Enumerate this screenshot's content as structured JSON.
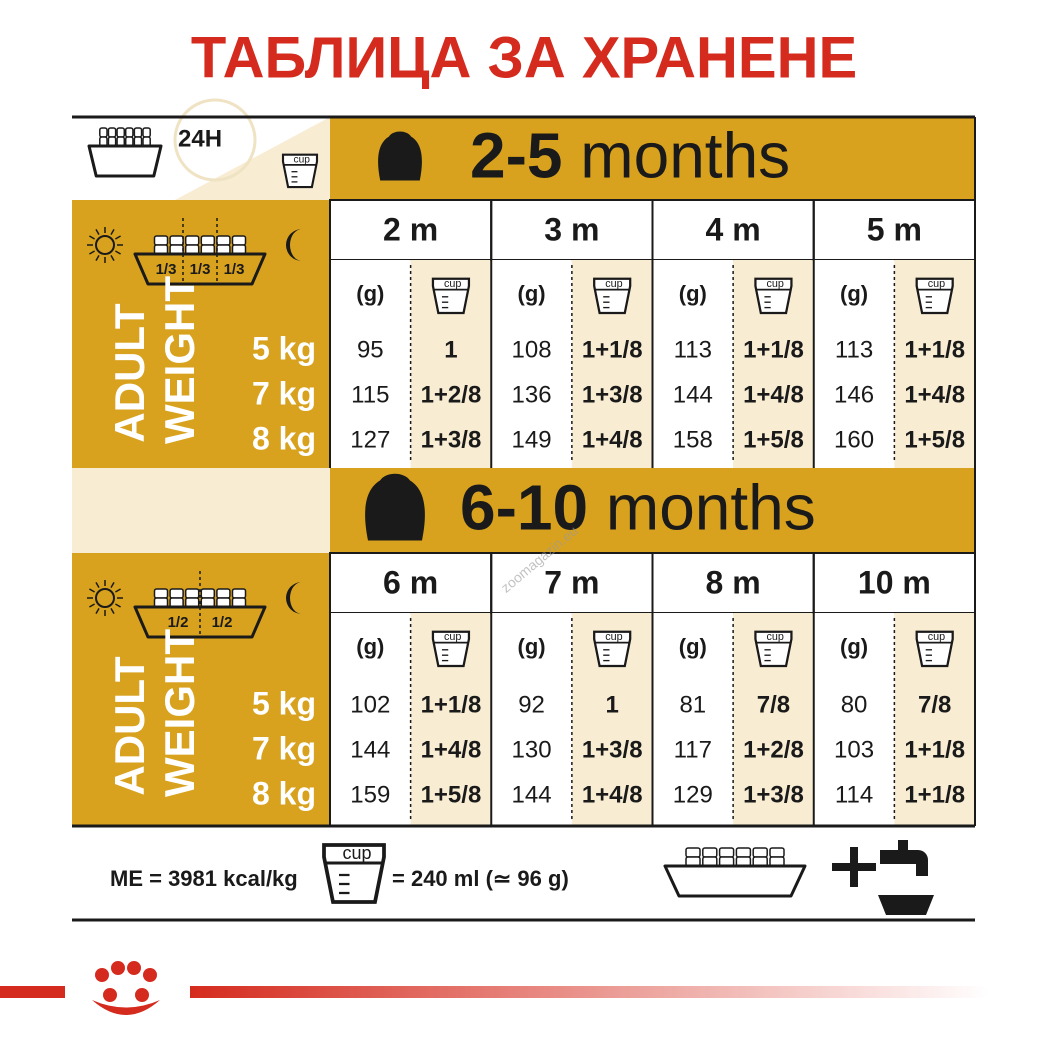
{
  "title": "ТАБЛИЦА ЗА ХРАНЕНЕ",
  "header": {
    "hours": "24H",
    "cup": "cup"
  },
  "sections": [
    {
      "age": "2-5",
      "unit": "months",
      "meals": [
        "1/3",
        "1/3",
        "1/3"
      ],
      "adult": "ADULT",
      "weight": "WEIGHT",
      "weights": [
        "5 kg",
        "7 kg",
        "8 kg"
      ],
      "units": {
        "grams": "(g)",
        "cup": "cup"
      },
      "columns": [
        {
          "month": "2 m",
          "grams": [
            95,
            115,
            127
          ],
          "cups": [
            "1",
            "1+2/8",
            "1+3/8"
          ]
        },
        {
          "month": "3 m",
          "grams": [
            108,
            136,
            149
          ],
          "cups": [
            "1+1/8",
            "1+3/8",
            "1+4/8"
          ]
        },
        {
          "month": "4 m",
          "grams": [
            113,
            144,
            158
          ],
          "cups": [
            "1+1/8",
            "1+4/8",
            "1+5/8"
          ]
        },
        {
          "month": "5 m",
          "grams": [
            113,
            146,
            160
          ],
          "cups": [
            "1+1/8",
            "1+4/8",
            "1+5/8"
          ]
        }
      ]
    },
    {
      "age": "6-10",
      "unit": "months",
      "meals": [
        "1/2",
        "1/2"
      ],
      "adult": "ADULT",
      "weight": "WEIGHT",
      "weights": [
        "5 kg",
        "7 kg",
        "8 kg"
      ],
      "units": {
        "grams": "(g)",
        "cup": "cup"
      },
      "columns": [
        {
          "month": "6 m",
          "grams": [
            102,
            144,
            159
          ],
          "cups": [
            "1+1/8",
            "1+4/8",
            "1+5/8"
          ]
        },
        {
          "month": "7 m",
          "grams": [
            92,
            130,
            144
          ],
          "cups": [
            "1",
            "1+3/8",
            "1+4/8"
          ]
        },
        {
          "month": "8 m",
          "grams": [
            81,
            117,
            129
          ],
          "cups": [
            "7/8",
            "1+2/8",
            "1+3/8"
          ]
        },
        {
          "month": "10 m",
          "grams": [
            80,
            103,
            114
          ],
          "cups": [
            "7/8",
            "1+1/8",
            "1+1/8"
          ]
        }
      ]
    }
  ],
  "footer": {
    "energy": "ME = 3981 kcal/kg",
    "cup": "cup",
    "equivalent": "= 240 ml (≃ 96 g)"
  },
  "watermark": "zoomagazin.eu"
}
